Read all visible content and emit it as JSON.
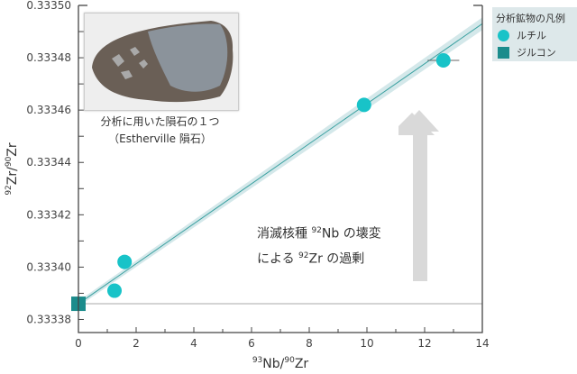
{
  "chart_data": {
    "type": "scatter",
    "title": "",
    "xlabel": "93Nb/90Zr",
    "ylabel": "92Zr/90Zr",
    "xlim": [
      0,
      14
    ],
    "ylim": [
      0.333375,
      0.3335
    ],
    "x_ticks": [
      0,
      2,
      4,
      6,
      8,
      10,
      12,
      14
    ],
    "x_tick_labels": [
      "0",
      "2",
      "4",
      "6",
      "8",
      "10",
      "12",
      "14"
    ],
    "y_ticks": [
      0.33338,
      0.3334,
      0.33342,
      0.33344,
      0.33346,
      0.33348,
      0.3335
    ],
    "y_tick_labels": [
      "0.33338",
      "0.33340",
      "0.33342",
      "0.33344",
      "0.33346",
      "0.33348",
      "0.33350"
    ],
    "grid": false,
    "legend_position": "top-right (outside)",
    "series": [
      {
        "name": "ルチル",
        "marker": "circle",
        "color": "#18c3c8",
        "points": [
          {
            "x": 1.25,
            "y": 0.333391,
            "xerr": 0.1,
            "yerr": 2e-06
          },
          {
            "x": 1.6,
            "y": 0.333402,
            "xerr": 0.1,
            "yerr": 2.5e-06
          },
          {
            "x": 9.9,
            "y": 0.333462,
            "xerr": 0.2,
            "yerr": 1.5e-06
          },
          {
            "x": 12.65,
            "y": 0.333479,
            "xerr": 0.55,
            "yerr": 2e-06
          }
        ]
      },
      {
        "name": "ジルコン",
        "marker": "square",
        "color": "#1b8c8c",
        "points": [
          {
            "x": 0,
            "y": 0.333386
          }
        ]
      }
    ],
    "fit_line": {
      "x": [
        0,
        14
      ],
      "y": [
        0.333386,
        0.333493
      ],
      "color": "#3aa0a0",
      "band_color": "#d4e8ea"
    },
    "baseline": {
      "y": 0.333386,
      "color": "#aaaaaa"
    },
    "annotations": [
      "分析に用いた隕石の１つ（Estherville 隕石）",
      "消滅核種 92Nb の壊変による 92Zr の過剰"
    ]
  },
  "axes": {
    "x_title_sup1": "93",
    "x_title_base1": "Nb/",
    "x_title_sup2": "90",
    "x_title_base2": "Zr",
    "y_title_sup1": "92",
    "y_title_base1": "Zr/",
    "y_title_sup2": "90",
    "y_title_base2": "Zr"
  },
  "photo": {
    "caption_line1": "分析に用いた隕石の１つ",
    "caption_line2": "（Estherville 隕石）"
  },
  "legend": {
    "title": "分析鉱物の凡例",
    "items": [
      {
        "label": "ルチル"
      },
      {
        "label": "ジルコン"
      }
    ]
  },
  "annotation": {
    "line1_a": "消滅核種 ",
    "line1_sup": "92",
    "line1_b": "Nb の壊変",
    "line2_a": "による ",
    "line2_sup": "92",
    "line2_b": "Zr の過剰"
  },
  "colors": {
    "rutile": "#18c3c8",
    "zircon": "#1b8c8c",
    "fit_band": "#d4e8ea",
    "fit_line": "#3aa0a0",
    "arrow": "#d9d9d9",
    "legend_bg": "#dde8ea"
  }
}
